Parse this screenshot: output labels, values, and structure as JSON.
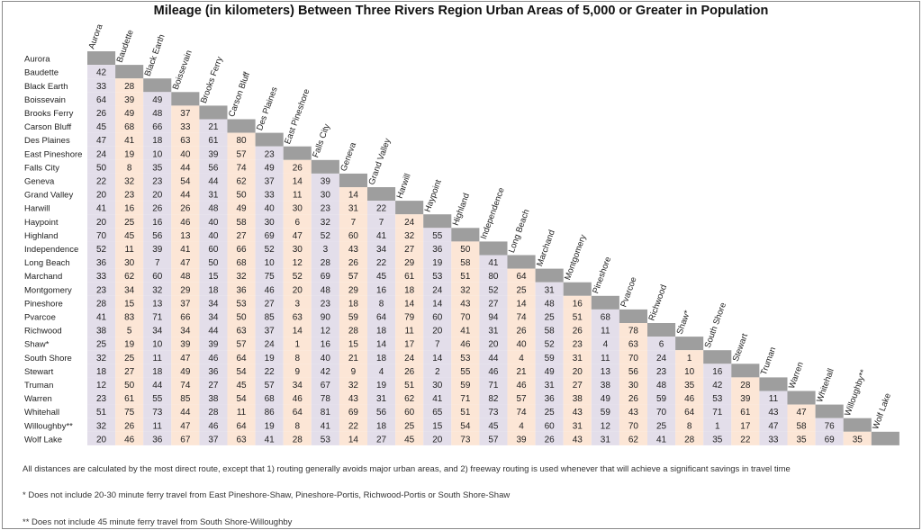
{
  "title": "Mileage (in kilometers) Between Three Rivers Region Urban Areas of 5,000 or Greater in Population",
  "chart_data": {
    "type": "table",
    "places": [
      "Aurora",
      "Baudette",
      "Black Earth",
      "Boissevain",
      "Brooks Ferry",
      "Carson Bluff",
      "Des Plaines",
      "East Pineshore",
      "Falls City",
      "Geneva",
      "Grand Valley",
      "Harwill",
      "Haypoint",
      "Highland",
      "Independence",
      "Long Beach",
      "Marchand",
      "Montgomery",
      "Pineshore",
      "Pvarcoe",
      "Richwood",
      "Shaw*",
      "South Shore",
      "Stewart",
      "Truman",
      "Warren",
      "Whitehall",
      "Willoughby**",
      "Wolf Lake"
    ],
    "distances": [
      [],
      [
        42
      ],
      [
        33,
        28
      ],
      [
        64,
        39,
        49
      ],
      [
        26,
        49,
        48,
        37
      ],
      [
        45,
        68,
        66,
        33,
        21
      ],
      [
        47,
        41,
        18,
        63,
        61,
        80
      ],
      [
        24,
        19,
        10,
        40,
        39,
        57,
        23
      ],
      [
        50,
        8,
        35,
        44,
        56,
        74,
        49,
        26
      ],
      [
        22,
        32,
        23,
        54,
        44,
        62,
        37,
        14,
        39
      ],
      [
        20,
        23,
        20,
        44,
        31,
        50,
        33,
        11,
        30,
        14
      ],
      [
        41,
        16,
        26,
        26,
        48,
        49,
        40,
        30,
        23,
        31,
        22
      ],
      [
        20,
        25,
        16,
        46,
        40,
        58,
        30,
        6,
        32,
        7,
        7,
        24
      ],
      [
        70,
        45,
        56,
        13,
        40,
        27,
        69,
        47,
        52,
        60,
        41,
        32,
        55
      ],
      [
        52,
        11,
        39,
        41,
        60,
        66,
        52,
        30,
        3,
        43,
        34,
        27,
        36,
        50
      ],
      [
        36,
        30,
        7,
        47,
        50,
        68,
        10,
        12,
        28,
        26,
        22,
        29,
        19,
        58,
        41
      ],
      [
        33,
        62,
        60,
        48,
        15,
        32,
        75,
        52,
        69,
        57,
        45,
        61,
        53,
        51,
        80,
        64
      ],
      [
        23,
        34,
        32,
        29,
        18,
        36,
        46,
        20,
        48,
        29,
        16,
        18,
        24,
        32,
        52,
        25,
        31
      ],
      [
        28,
        15,
        13,
        37,
        34,
        53,
        27,
        3,
        23,
        18,
        8,
        14,
        14,
        43,
        27,
        14,
        48,
        16
      ],
      [
        41,
        83,
        71,
        66,
        34,
        50,
        85,
        63,
        90,
        59,
        64,
        79,
        60,
        70,
        94,
        74,
        25,
        51,
        68
      ],
      [
        38,
        5,
        34,
        34,
        44,
        63,
        37,
        14,
        12,
        28,
        18,
        11,
        20,
        41,
        31,
        26,
        58,
        26,
        11,
        78
      ],
      [
        25,
        19,
        10,
        39,
        39,
        57,
        24,
        1,
        16,
        15,
        14,
        17,
        7,
        46,
        20,
        40,
        52,
        23,
        4,
        63,
        6
      ],
      [
        32,
        25,
        11,
        47,
        46,
        64,
        19,
        8,
        40,
        21,
        18,
        24,
        14,
        53,
        44,
        4,
        59,
        31,
        11,
        70,
        24,
        1
      ],
      [
        18,
        27,
        18,
        49,
        36,
        54,
        22,
        9,
        42,
        9,
        4,
        26,
        2,
        55,
        46,
        21,
        49,
        20,
        13,
        56,
        23,
        10,
        16
      ],
      [
        12,
        50,
        44,
        74,
        27,
        45,
        57,
        34,
        67,
        32,
        19,
        51,
        30,
        59,
        71,
        46,
        31,
        27,
        38,
        30,
        48,
        35,
        42,
        28
      ],
      [
        23,
        61,
        55,
        85,
        38,
        54,
        68,
        46,
        78,
        43,
        31,
        62,
        41,
        71,
        82,
        57,
        36,
        38,
        49,
        26,
        59,
        46,
        53,
        39,
        11
      ],
      [
        51,
        75,
        73,
        44,
        28,
        11,
        86,
        64,
        81,
        69,
        56,
        60,
        65,
        51,
        73,
        74,
        25,
        43,
        59,
        43,
        70,
        64,
        71,
        61,
        43,
        47
      ],
      [
        32,
        26,
        11,
        47,
        46,
        64,
        19,
        8,
        41,
        22,
        18,
        25,
        15,
        54,
        45,
        4,
        60,
        31,
        12,
        70,
        25,
        8,
        1,
        17,
        47,
        58,
        76
      ],
      [
        20,
        46,
        36,
        67,
        37,
        63,
        41,
        28,
        53,
        14,
        27,
        45,
        20,
        73,
        57,
        39,
        26,
        43,
        31,
        62,
        41,
        28,
        35,
        22,
        33,
        35,
        69,
        35
      ]
    ],
    "colors": {
      "odd_column": "#e3deea",
      "even_column": "#fce6d6",
      "diagonal": "#9e9e9e",
      "text": "#222222"
    }
  },
  "notes": [
    "All distances are calculated by the most direct route, except that 1) routing generally avoids major urban areas, and 2) freeway routing is used whenever that will achieve a significant savings in travel time",
    "* Does not include 20-30 minute ferry travel from East Pineshore-Shaw, Pineshore-Portis, Richwood-Portis or South Shore-Shaw",
    "**  Does not include 45 minute ferry travel from South Shore-Willoughby"
  ]
}
